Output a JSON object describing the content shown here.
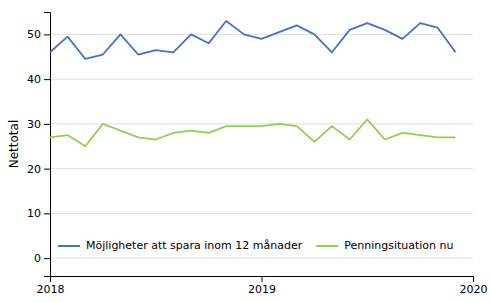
{
  "chart_data": {
    "type": "line",
    "ylabel": "Nettotal",
    "x": [
      2018.0,
      2018.083,
      2018.167,
      2018.25,
      2018.333,
      2018.417,
      2018.5,
      2018.583,
      2018.667,
      2018.75,
      2018.833,
      2018.917,
      2019.0,
      2019.083,
      2019.167,
      2019.25,
      2019.333,
      2019.417,
      2019.5,
      2019.583,
      2019.667,
      2019.75,
      2019.833,
      2019.917
    ],
    "series": [
      {
        "name": "Möjligheter att spara inom 12 månader",
        "color": "#4472C4",
        "values": [
          46,
          49.5,
          44.5,
          45.5,
          50,
          45.5,
          46.5,
          46,
          50,
          48,
          53,
          50,
          49,
          50.5,
          52,
          50,
          46,
          51,
          52.5,
          51,
          49,
          52.5,
          51.5,
          46
        ]
      },
      {
        "name": "Penningsituation nu",
        "color": "#92D050",
        "values": [
          27,
          27.5,
          25,
          30,
          28.5,
          27,
          26.5,
          28,
          28.5,
          28,
          29.5,
          29.5,
          29.5,
          30,
          29.5,
          26,
          29.5,
          26.5,
          31,
          26.5,
          28,
          27.5,
          27,
          27
        ]
      }
    ],
    "xlim": [
      2018.0,
      2020.0
    ],
    "ylim": [
      -4,
      55
    ],
    "xticks": [
      2018,
      2019,
      2020
    ],
    "yticks": [
      0,
      10,
      20,
      30,
      40,
      50
    ],
    "grid": true,
    "legend": "lower left"
  }
}
